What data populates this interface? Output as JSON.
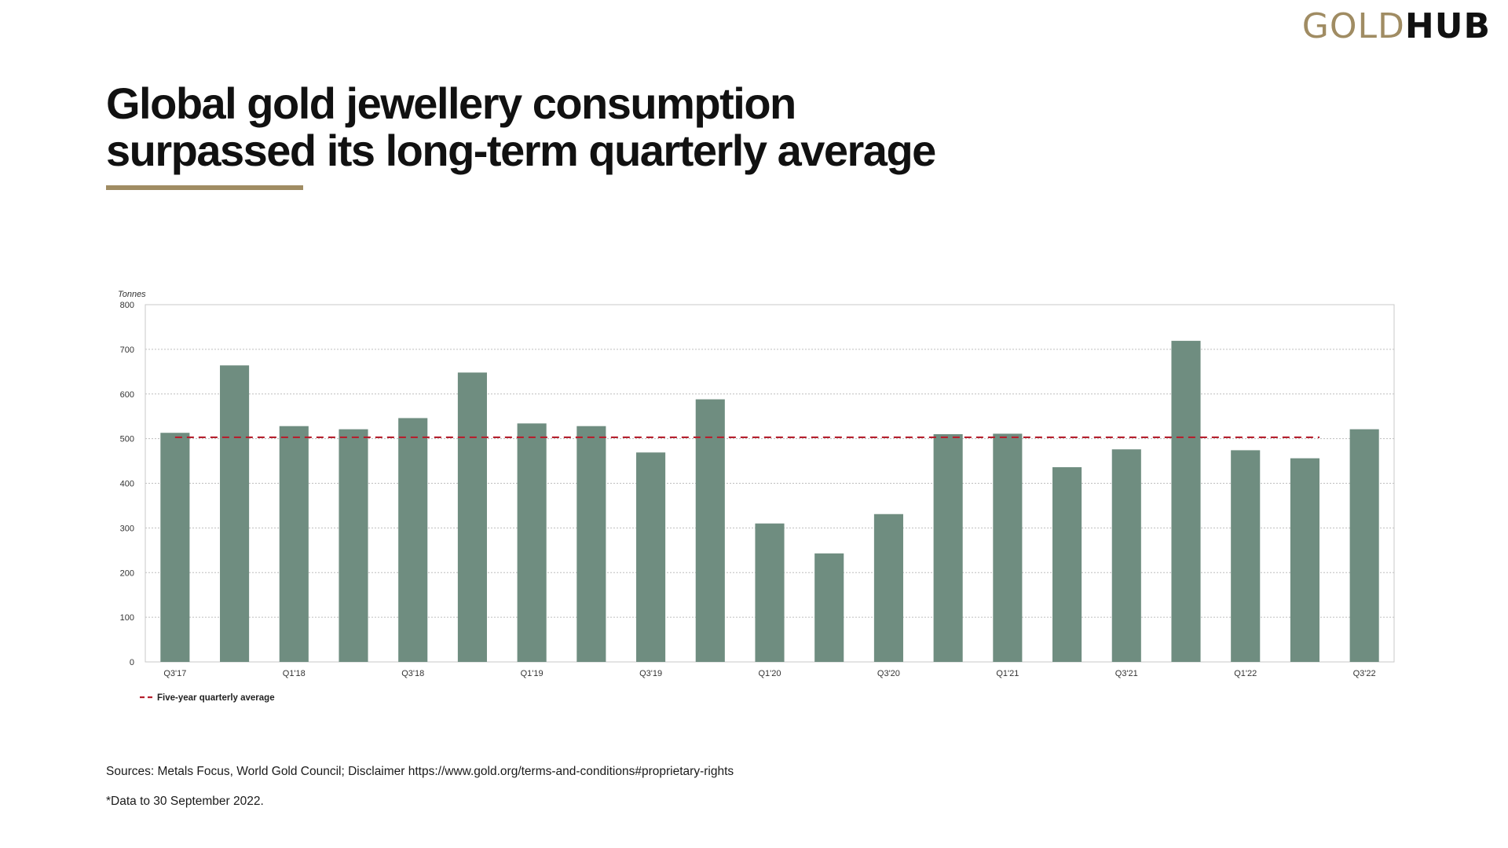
{
  "brand": {
    "gold": "GOLD",
    "hub": "HUB",
    "gold_color": "#a08c63"
  },
  "header": {
    "title_line1": "Global gold jewellery consumption",
    "title_line2": "surpassed its long-term quarterly average"
  },
  "chart_data": {
    "type": "bar",
    "title": "Global gold jewellery consumption surpassed its long-term quarterly average",
    "ylabel": "Tonnes",
    "xlabel": "",
    "ylim": [
      0,
      800
    ],
    "yticks": [
      0,
      100,
      200,
      300,
      400,
      500,
      600,
      700,
      800
    ],
    "grid": true,
    "categories": [
      "Q3'17",
      "Q4'17",
      "Q1'18",
      "Q2'18",
      "Q3'18",
      "Q4'18",
      "Q1'19",
      "Q2'19",
      "Q3'19",
      "Q4'19",
      "Q1'20",
      "Q2'20",
      "Q3'20",
      "Q4'20",
      "Q1'21",
      "Q2'21",
      "Q3'21",
      "Q4'21",
      "Q1'22",
      "Q2'22",
      "Q3'22"
    ],
    "tick_labels": [
      "Q3'17",
      "",
      "Q1'18",
      "",
      "Q3'18",
      "",
      "Q1'19",
      "",
      "Q3'19",
      "",
      "Q1'20",
      "",
      "Q3'20",
      "",
      "Q1'21",
      "",
      "Q3'21",
      "",
      "Q1'22",
      "",
      "Q3'22"
    ],
    "series": [
      {
        "name": "Jewellery consumption",
        "color": "#6f8d80",
        "values": [
          513,
          664,
          528,
          521,
          546,
          648,
          534,
          528,
          469,
          588,
          310,
          243,
          331,
          510,
          511,
          436,
          476,
          719,
          474,
          456,
          521
        ]
      }
    ],
    "reference_line": {
      "name": "Five-year quarterly average",
      "value": 503,
      "start_category": "Q3'17",
      "end_category": "Q2'22",
      "color": "#b5202e",
      "style": "dashed"
    },
    "legend": {
      "position": "bottom-left",
      "label": "Five-year quarterly average"
    }
  },
  "footer": {
    "source": "Sources: Metals Focus, World Gold Council; Disclaimer https://www.gold.org/terms-and-conditions#proprietary-rights",
    "note": "*Data to 30 September 2022."
  }
}
